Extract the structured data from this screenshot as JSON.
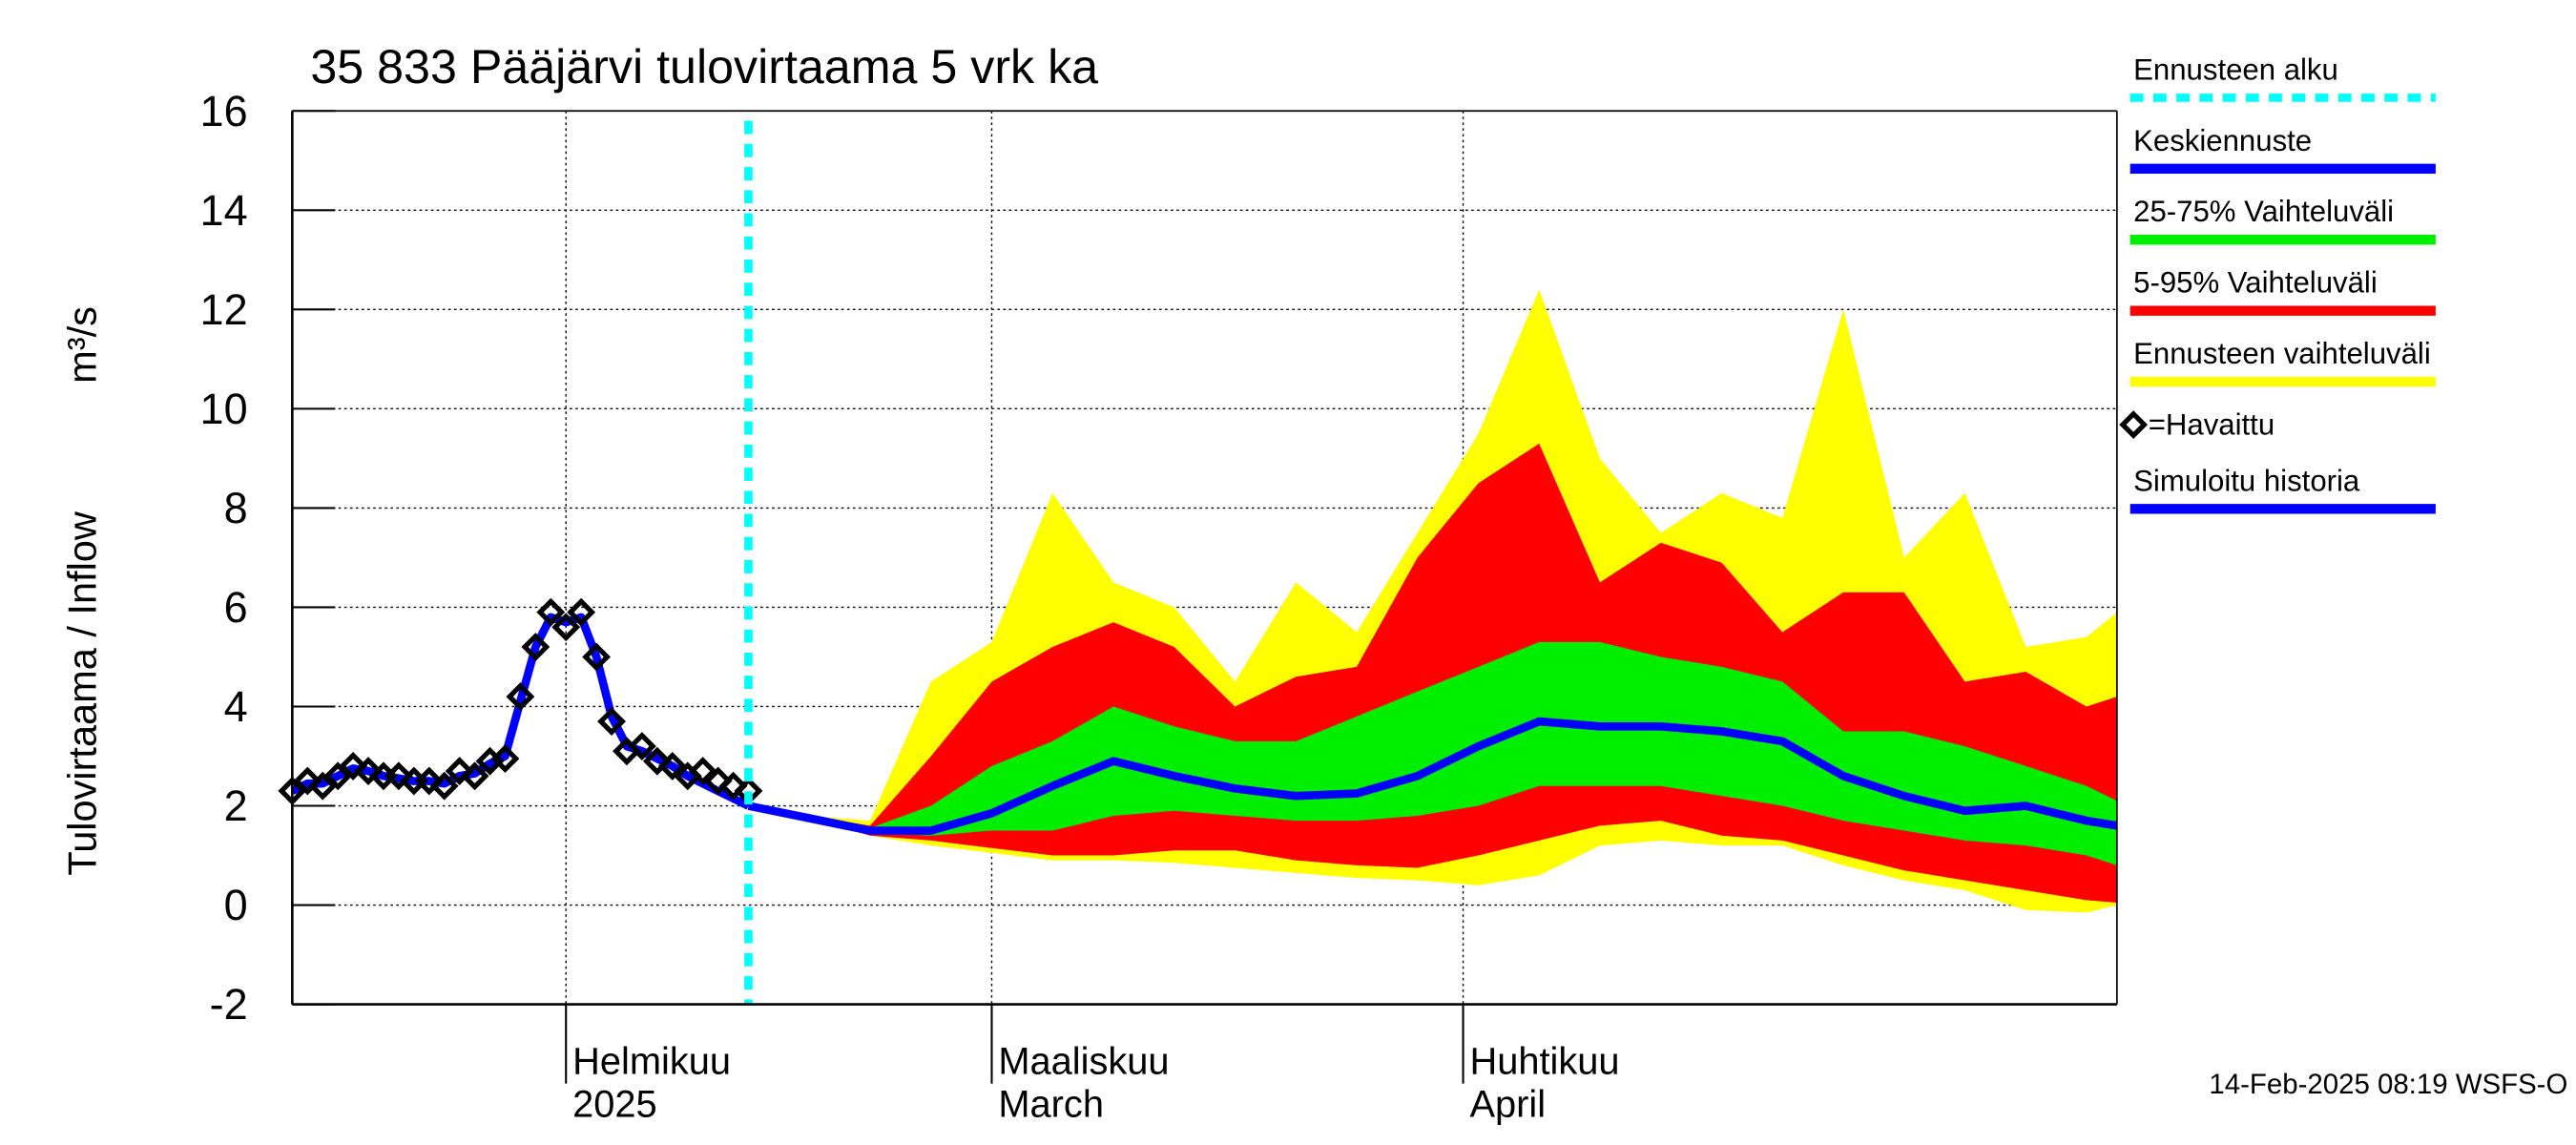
{
  "chart_data": {
    "type": "line",
    "title": "35 833 Pääjärvi tulovirtaama 5 vrk ka",
    "ylabel": "Tulovirtaama / Inflow",
    "yunit": "m³/s",
    "footer": "14-Feb-2025 08:19 WSFS-O",
    "xlim": [
      "2025-01-14",
      "2025-05-14"
    ],
    "ylim": [
      -2,
      16
    ],
    "yticks": [
      -2,
      0,
      2,
      4,
      6,
      8,
      10,
      12,
      14,
      16
    ],
    "xticks": [
      {
        "value": "2025-02-01",
        "label": [
          "Helmikuu",
          "2025"
        ]
      },
      {
        "value": "2025-03-01",
        "label": [
          "Maaliskuu",
          "March"
        ]
      },
      {
        "value": "2025-04-01",
        "label": [
          "Huhtikuu",
          "April"
        ]
      }
    ],
    "grid": true,
    "forecast_start": {
      "name": "Ennusteen alku",
      "x": "2025-02-13",
      "color": "#00ffff"
    },
    "series": [
      {
        "name": "Keskiennuste",
        "color": "#0000ff",
        "x": [
          "2025-02-13",
          "2025-02-17",
          "2025-02-21",
          "2025-02-25",
          "2025-03-01",
          "2025-03-05",
          "2025-03-09",
          "2025-03-13",
          "2025-03-17",
          "2025-03-21",
          "2025-03-25",
          "2025-03-29",
          "2025-04-02",
          "2025-04-06",
          "2025-04-10",
          "2025-04-14",
          "2025-04-18",
          "2025-04-22",
          "2025-04-26",
          "2025-04-30",
          "2025-05-04",
          "2025-05-08",
          "2025-05-12",
          "2025-05-14"
        ],
        "values": [
          2.0,
          1.75,
          1.5,
          1.5,
          1.85,
          2.4,
          2.9,
          2.6,
          2.35,
          2.2,
          2.25,
          2.6,
          3.2,
          3.7,
          3.6,
          3.6,
          3.5,
          3.3,
          2.6,
          2.2,
          1.9,
          2.0,
          1.7,
          1.6
        ]
      },
      {
        "name": "25-75% Vaihteluväli",
        "color": "#00ee00",
        "x": [
          "2025-02-13",
          "2025-02-17",
          "2025-02-21",
          "2025-02-25",
          "2025-03-01",
          "2025-03-05",
          "2025-03-09",
          "2025-03-13",
          "2025-03-17",
          "2025-03-21",
          "2025-03-25",
          "2025-03-29",
          "2025-04-02",
          "2025-04-06",
          "2025-04-10",
          "2025-04-14",
          "2025-04-18",
          "2025-04-22",
          "2025-04-26",
          "2025-04-30",
          "2025-05-04",
          "2025-05-08",
          "2025-05-12",
          "2025-05-14"
        ],
        "low": [
          2.0,
          1.75,
          1.45,
          1.4,
          1.5,
          1.5,
          1.8,
          1.9,
          1.8,
          1.7,
          1.7,
          1.8,
          2.0,
          2.4,
          2.4,
          2.4,
          2.2,
          2.0,
          1.7,
          1.5,
          1.3,
          1.2,
          1.0,
          0.8
        ],
        "high": [
          2.0,
          1.8,
          1.55,
          2.0,
          2.8,
          3.3,
          4.0,
          3.6,
          3.3,
          3.3,
          3.8,
          4.3,
          4.8,
          5.3,
          5.3,
          5.0,
          4.8,
          4.5,
          3.5,
          3.5,
          3.2,
          2.8,
          2.4,
          2.1
        ]
      },
      {
        "name": "5-95% Vaihteluväli",
        "color": "#ff0000",
        "x": [
          "2025-02-13",
          "2025-02-17",
          "2025-02-21",
          "2025-02-25",
          "2025-03-01",
          "2025-03-05",
          "2025-03-09",
          "2025-03-13",
          "2025-03-17",
          "2025-03-21",
          "2025-03-25",
          "2025-03-29",
          "2025-04-02",
          "2025-04-06",
          "2025-04-10",
          "2025-04-14",
          "2025-04-18",
          "2025-04-22",
          "2025-04-26",
          "2025-04-30",
          "2025-05-04",
          "2025-05-08",
          "2025-05-12",
          "2025-05-14"
        ],
        "low": [
          2.0,
          1.75,
          1.4,
          1.3,
          1.15,
          1.0,
          1.0,
          1.1,
          1.1,
          0.9,
          0.8,
          0.75,
          1.0,
          1.3,
          1.6,
          1.7,
          1.4,
          1.3,
          1.0,
          0.7,
          0.5,
          0.3,
          0.1,
          0.05
        ],
        "high": [
          2.0,
          1.8,
          1.6,
          3.0,
          4.5,
          5.2,
          5.7,
          5.2,
          4.0,
          4.6,
          4.8,
          7.0,
          8.5,
          9.3,
          6.5,
          7.3,
          6.9,
          5.5,
          6.3,
          6.3,
          4.5,
          4.7,
          4.0,
          4.2
        ]
      },
      {
        "name": "Ennusteen vaihteluväli",
        "color": "#ffff00",
        "x": [
          "2025-02-13",
          "2025-02-17",
          "2025-02-21",
          "2025-02-25",
          "2025-03-01",
          "2025-03-05",
          "2025-03-09",
          "2025-03-13",
          "2025-03-17",
          "2025-03-21",
          "2025-03-25",
          "2025-03-29",
          "2025-04-02",
          "2025-04-06",
          "2025-04-10",
          "2025-04-14",
          "2025-04-18",
          "2025-04-22",
          "2025-04-26",
          "2025-04-30",
          "2025-05-04",
          "2025-05-08",
          "2025-05-12",
          "2025-05-14"
        ],
        "low": [
          2.0,
          1.75,
          1.4,
          1.2,
          1.05,
          0.9,
          0.9,
          0.85,
          0.75,
          0.65,
          0.55,
          0.5,
          0.4,
          0.6,
          1.2,
          1.3,
          1.2,
          1.2,
          0.8,
          0.5,
          0.3,
          -0.1,
          -0.15,
          0.0
        ],
        "high": [
          2.0,
          1.8,
          1.7,
          4.5,
          5.3,
          8.3,
          6.5,
          6.0,
          4.5,
          6.5,
          5.5,
          7.5,
          9.5,
          12.4,
          9.0,
          7.5,
          8.3,
          7.8,
          12.0,
          7.0,
          8.3,
          5.2,
          5.4,
          5.9
        ]
      },
      {
        "name": "=Havaittu",
        "color": "#000000",
        "marker": "diamond",
        "x": [
          "2025-01-14",
          "2025-01-15",
          "2025-01-16",
          "2025-01-17",
          "2025-01-18",
          "2025-01-19",
          "2025-01-20",
          "2025-01-21",
          "2025-01-22",
          "2025-01-23",
          "2025-01-24",
          "2025-01-25",
          "2025-01-26",
          "2025-01-27",
          "2025-01-28",
          "2025-01-29",
          "2025-01-30",
          "2025-01-31",
          "2025-02-01",
          "2025-02-02",
          "2025-02-03",
          "2025-02-04",
          "2025-02-05",
          "2025-02-06",
          "2025-02-07",
          "2025-02-08",
          "2025-02-09",
          "2025-02-10",
          "2025-02-11",
          "2025-02-12",
          "2025-02-13"
        ],
        "values": [
          2.3,
          2.5,
          2.4,
          2.6,
          2.8,
          2.7,
          2.6,
          2.6,
          2.5,
          2.5,
          2.4,
          2.7,
          2.6,
          2.9,
          2.95,
          4.2,
          5.2,
          5.9,
          5.6,
          5.9,
          5.0,
          3.7,
          3.1,
          3.2,
          2.9,
          2.8,
          2.6,
          2.7,
          2.5,
          2.4,
          2.3
        ]
      },
      {
        "name": "Simuloitu historia",
        "color": "#0000ff",
        "x": [
          "2025-01-14",
          "2025-01-15",
          "2025-01-16",
          "2025-01-17",
          "2025-01-18",
          "2025-01-19",
          "2025-01-20",
          "2025-01-21",
          "2025-01-22",
          "2025-01-23",
          "2025-01-24",
          "2025-01-25",
          "2025-01-26",
          "2025-01-27",
          "2025-01-28",
          "2025-01-29",
          "2025-01-30",
          "2025-01-31",
          "2025-02-01",
          "2025-02-02",
          "2025-02-03",
          "2025-02-04",
          "2025-02-05",
          "2025-02-06",
          "2025-02-07",
          "2025-02-08",
          "2025-02-09",
          "2025-02-10",
          "2025-02-11",
          "2025-02-12",
          "2025-02-13"
        ],
        "values": [
          2.3,
          2.45,
          2.45,
          2.6,
          2.75,
          2.7,
          2.6,
          2.55,
          2.5,
          2.5,
          2.45,
          2.6,
          2.65,
          2.85,
          3.0,
          4.1,
          5.2,
          5.8,
          5.7,
          5.8,
          5.0,
          3.8,
          3.2,
          3.1,
          2.95,
          2.8,
          2.6,
          2.45,
          2.3,
          2.15,
          2.0
        ]
      }
    ]
  }
}
